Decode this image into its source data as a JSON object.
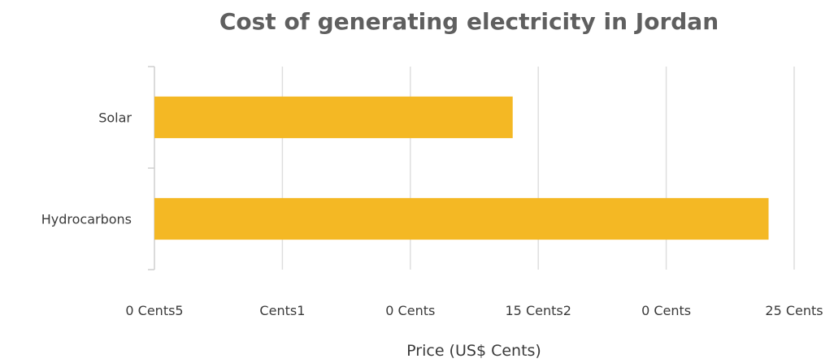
{
  "chart_data": {
    "type": "bar",
    "orientation": "horizontal",
    "title": "Cost of generating electricity in Jordan",
    "xlabel": "Price (US$ Cents)",
    "ylabel": "",
    "categories": [
      "Solar",
      "Hydrocarbons"
    ],
    "values": [
      14,
      24
    ],
    "xlim": [
      0,
      25
    ],
    "tick_values": [
      0,
      5,
      10,
      15,
      20,
      25
    ],
    "tick_labels": [
      "0 Cents5",
      "Cents1",
      "0 Cents",
      "15 Cents2",
      "0 Cents",
      "25 Cents"
    ],
    "grid": true,
    "legend": "none",
    "bar_color": "#f4b824",
    "grid_color": "#dedede"
  }
}
